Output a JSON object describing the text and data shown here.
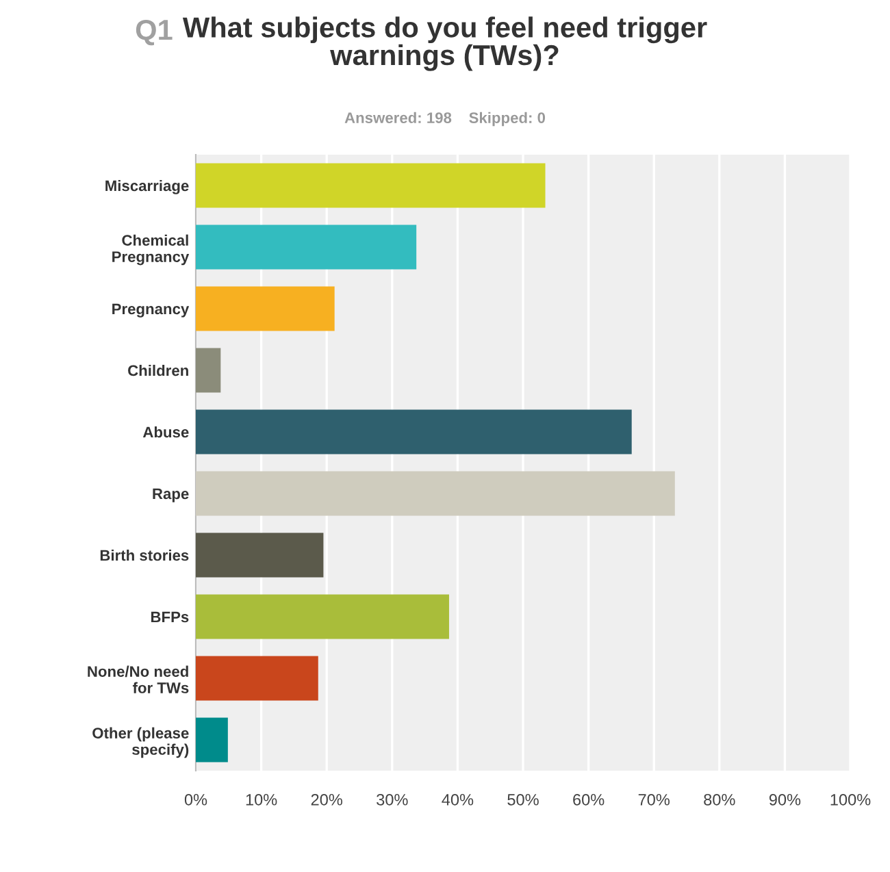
{
  "chart_data": {
    "type": "bar",
    "orientation": "horizontal",
    "title": "What subjects do you feel need trigger\nwarnings (TWs)?",
    "subtitle": "Answered: 198    Skipped: 0",
    "annotations": [
      "Q1"
    ],
    "categories": [
      "Miscarriage",
      "Chemical\nPregnancy",
      "Pregnancy",
      "Children",
      "Abuse",
      "Rape",
      "Birth stories",
      "BFPs",
      "None/No need\nfor TWs",
      "Other (please\nspecify)"
    ],
    "values": [
      53.4,
      33.7,
      21.2,
      3.8,
      66.6,
      73.2,
      19.5,
      38.7,
      18.7,
      4.9
    ],
    "colors": [
      "#d0d528",
      "#33bcbf",
      "#f7b021",
      "#8b8c7a",
      "#2f606e",
      "#cfccbe",
      "#5b5a4b",
      "#a9bd3a",
      "#c9461c",
      "#008b8b"
    ],
    "xlim": [
      0,
      100
    ],
    "xticks": [
      {
        "value": 0,
        "label": "0%"
      },
      {
        "value": 10,
        "label": "10%"
      },
      {
        "value": 20,
        "label": "20%"
      },
      {
        "value": 30,
        "label": "30%"
      },
      {
        "value": 40,
        "label": "40%"
      },
      {
        "value": 50,
        "label": "50%"
      },
      {
        "value": 60,
        "label": "60%"
      },
      {
        "value": 70,
        "label": "70%"
      },
      {
        "value": 80,
        "label": "80%"
      },
      {
        "value": 90,
        "label": "90%"
      },
      {
        "value": 100,
        "label": "100%"
      }
    ],
    "grid": "x"
  }
}
